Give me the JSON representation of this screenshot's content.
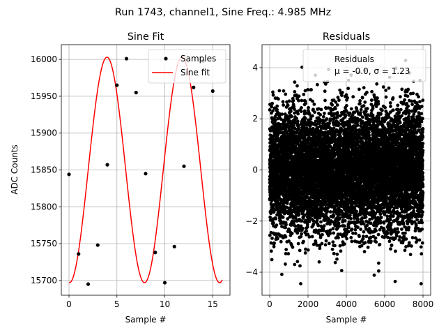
{
  "suptitle": "Run 1743, channel1, Sine Freq.: 4.985 MHz",
  "chart_data": [
    {
      "type": "line",
      "title": "Sine Fit",
      "xlabel": "Sample #",
      "ylabel": "ADC Counts",
      "xlim": [
        -0.8,
        16.8
      ],
      "ylim": [
        15680,
        16020
      ],
      "xticks": [
        0,
        5,
        10,
        15
      ],
      "yticks": [
        15700,
        15750,
        15800,
        15850,
        15900,
        15950,
        16000
      ],
      "grid": true,
      "legend_position": "top-right",
      "series": [
        {
          "name": "Samples",
          "kind": "scatter",
          "color": "#000000",
          "x": [
            0,
            1,
            2,
            3,
            4,
            5,
            6,
            7,
            8,
            9,
            10,
            11,
            12,
            13,
            14,
            15
          ],
          "y": [
            15844,
            15736,
            15695,
            15748,
            15857,
            15965,
            16001,
            15955,
            15845,
            15738,
            15697,
            15746,
            15855,
            15962,
            15998,
            15957
          ]
        },
        {
          "name": "Sine fit",
          "kind": "line",
          "color": "#ff0000",
          "function": "sine",
          "x_range": [
            0,
            16
          ],
          "offset": 15850,
          "amplitude": 153,
          "frequency_per_sample": 0.1276,
          "phase_deg": 178
        }
      ]
    },
    {
      "type": "scatter",
      "title": "Residuals",
      "xlabel": "Sample #",
      "ylabel": "",
      "xlim": [
        -400,
        8400
      ],
      "ylim": [
        -4.9,
        4.9
      ],
      "xticks": [
        0,
        2000,
        4000,
        6000,
        8000
      ],
      "yticks": [
        -4,
        -2,
        0,
        2,
        4
      ],
      "grid": true,
      "legend_position": "top-right",
      "legend_label": "Residuals",
      "legend_stats": "μ = -0.0, σ = 1.23",
      "point_color": "#000000",
      "n_points": 8000,
      "mean": 0.0,
      "std": 1.23
    }
  ]
}
